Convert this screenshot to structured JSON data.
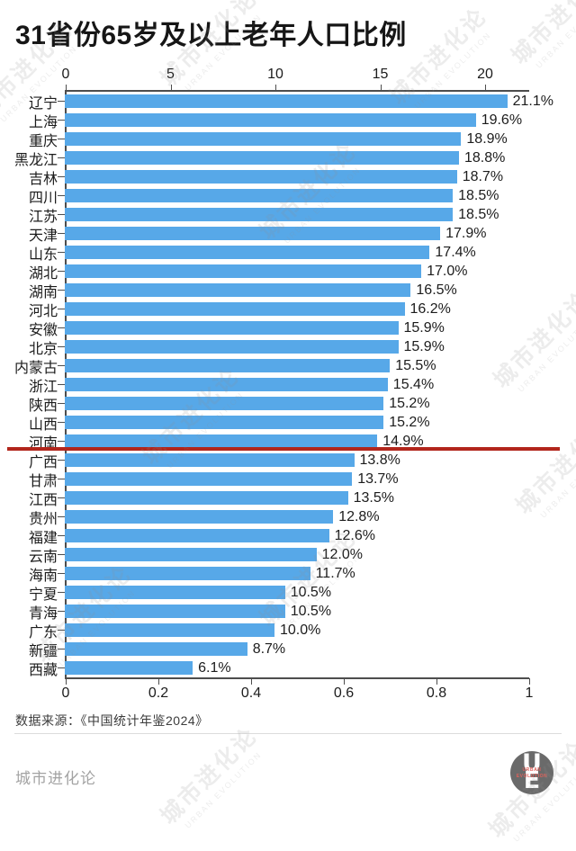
{
  "title": "31省份65岁及以上老年人口比例",
  "source": "数据来源：《中国统计年鉴2024》",
  "footer": {
    "brand": "城市进化论",
    "logo": {
      "letter_top": "U",
      "letter_bottom": "E",
      "caption_line1": "URBAN",
      "caption_line2": "EVOLUTION"
    }
  },
  "watermark": {
    "line1": "城市进化论",
    "line2": "URBAN EVOLUTION"
  },
  "colors": {
    "bar": "#57A8E8",
    "reference_line": "#B2261C",
    "axis": "#4D4D4D",
    "text": "#1C1C1C",
    "brand_text": "#A3A3A3"
  },
  "chart_data": {
    "type": "bar",
    "orientation": "horizontal",
    "title": "31省份65岁及以上老年人口比例",
    "unit": "%",
    "categories": [
      "辽宁",
      "上海",
      "重庆",
      "黑龙江",
      "吉林",
      "四川",
      "江苏",
      "天津",
      "山东",
      "湖北",
      "湖南",
      "河北",
      "安徽",
      "北京",
      "内蒙古",
      "浙江",
      "陕西",
      "山西",
      "河南",
      "广西",
      "甘肃",
      "江西",
      "贵州",
      "福建",
      "云南",
      "海南",
      "宁夏",
      "青海",
      "广东",
      "新疆",
      "西藏"
    ],
    "values": [
      21.1,
      19.6,
      18.9,
      18.8,
      18.7,
      18.5,
      18.5,
      17.9,
      17.4,
      17.0,
      16.5,
      16.2,
      15.9,
      15.9,
      15.5,
      15.4,
      15.2,
      15.2,
      14.9,
      13.8,
      13.7,
      13.5,
      12.8,
      12.6,
      12.0,
      11.7,
      10.5,
      10.5,
      10.0,
      8.7,
      6.1
    ],
    "value_labels": [
      "21.1%",
      "19.6%",
      "18.9%",
      "18.8%",
      "18.7%",
      "18.5%",
      "18.5%",
      "17.9%",
      "17.4%",
      "17.0%",
      "16.5%",
      "16.2%",
      "15.9%",
      "15.9%",
      "15.5%",
      "15.4%",
      "15.2%",
      "15.2%",
      "14.9%",
      "13.8%",
      "13.7%",
      "13.5%",
      "12.8%",
      "12.6%",
      "12.0%",
      "11.7%",
      "10.5%",
      "10.5%",
      "10.0%",
      "8.7%",
      "6.1%"
    ],
    "top_axis_ticks": [
      0,
      5,
      10,
      15,
      20
    ],
    "top_axis_range": [
      0,
      22
    ],
    "bottom_axis_ticks": [
      "0",
      "0.2",
      "0.4",
      "0.6",
      "0.8",
      "1"
    ],
    "bottom_axis_range": [
      0,
      1
    ],
    "bar_color": "#57A8E8",
    "grid": false,
    "legend": false,
    "reference_line": {
      "below_category": "河南",
      "color": "#B2261C"
    }
  }
}
